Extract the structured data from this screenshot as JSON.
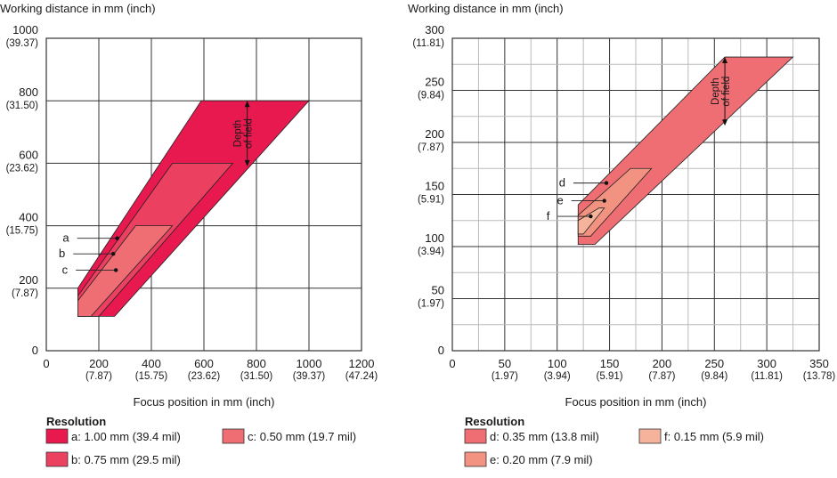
{
  "chart_data": [
    {
      "type": "area",
      "ylabel": "Working distance in mm (inch)",
      "xlabel": "Focus position in mm (inch)",
      "xlim": [
        0,
        1200
      ],
      "ylim": [
        0,
        1000
      ],
      "x_ticks": [
        {
          "value": 0,
          "label": "0",
          "sub": ""
        },
        {
          "value": 200,
          "label": "200",
          "sub": "(7.87)"
        },
        {
          "value": 400,
          "label": "400",
          "sub": "(15.75)"
        },
        {
          "value": 600,
          "label": "600",
          "sub": "(23.62)"
        },
        {
          "value": 800,
          "label": "800",
          "sub": "(31.50)"
        },
        {
          "value": 1000,
          "label": "1000",
          "sub": "(39.37)"
        },
        {
          "value": 1200,
          "label": "1200",
          "sub": "(47.24)"
        }
      ],
      "y_ticks": [
        {
          "value": 0,
          "label": "0",
          "sub": ""
        },
        {
          "value": 200,
          "label": "200",
          "sub": "(7.87)"
        },
        {
          "value": 400,
          "label": "400",
          "sub": "(15.75)"
        },
        {
          "value": 600,
          "label": "600",
          "sub": "(23.62)"
        },
        {
          "value": 800,
          "label": "800",
          "sub": "(31.50)"
        },
        {
          "value": 1000,
          "label": "1000",
          "sub": "(39.37)"
        }
      ],
      "series": [
        {
          "key": "a",
          "name": "a: 1.00 mm (39.4 mil)",
          "color": "#e8194f",
          "outline": [
            [
              120,
              110
            ],
            [
              120,
              200
            ],
            [
              590,
              800
            ],
            [
              1000,
              800
            ],
            [
              260,
              110
            ]
          ]
        },
        {
          "key": "b",
          "name": "b: 0.75 mm (29.5 mil)",
          "color": "#eb4060",
          "outline": [
            [
              120,
              110
            ],
            [
              120,
              175
            ],
            [
              480,
              600
            ],
            [
              710,
              600
            ],
            [
              200,
              110
            ]
          ]
        },
        {
          "key": "c",
          "name": "c: 0.50 mm (19.7 mil)",
          "color": "#ee6e73",
          "outline": [
            [
              120,
              110
            ],
            [
              120,
              160
            ],
            [
              340,
              400
            ],
            [
              480,
              400
            ],
            [
              170,
              110
            ]
          ]
        }
      ],
      "point_labels": [
        {
          "key": "a",
          "text": "a",
          "x": 270,
          "y": 360
        },
        {
          "key": "b",
          "text": "b",
          "x": 255,
          "y": 310
        },
        {
          "key": "c",
          "text": "c",
          "x": 265,
          "y": 258
        }
      ],
      "depth_of_field": {
        "text_line1": "Depth",
        "text_line2": "of field",
        "x": 765,
        "y_top": 800,
        "y_bottom": 590
      },
      "legend_title": "Resolution",
      "legend": [
        {
          "key": "a",
          "label": "a: 1.00 mm (39.4 mil)",
          "color": "#e8194f"
        },
        {
          "key": "c",
          "label": "c: 0.50 mm (19.7 mil)",
          "color": "#ee6e73"
        },
        {
          "key": "b",
          "label": "b: 0.75 mm (29.5 mil)",
          "color": "#eb4060"
        }
      ]
    },
    {
      "type": "area",
      "ylabel": "Working distance in mm (inch)",
      "xlabel": "Focus position in mm (inch)",
      "xlim": [
        0,
        350
      ],
      "ylim": [
        0,
        300
      ],
      "x_ticks": [
        {
          "value": 0,
          "label": "0",
          "sub": ""
        },
        {
          "value": 50,
          "label": "50",
          "sub": "(1.97)"
        },
        {
          "value": 100,
          "label": "100",
          "sub": "(3.94)"
        },
        {
          "value": 150,
          "label": "150",
          "sub": "(5.91)"
        },
        {
          "value": 200,
          "label": "200",
          "sub": "(7.87)"
        },
        {
          "value": 250,
          "label": "250",
          "sub": "(9.84)"
        },
        {
          "value": 300,
          "label": "300",
          "sub": "(11.81)"
        },
        {
          "value": 350,
          "label": "350",
          "sub": "(13.78)"
        }
      ],
      "y_ticks": [
        {
          "value": 0,
          "label": "0",
          "sub": ""
        },
        {
          "value": 50,
          "label": "50",
          "sub": "(1.97)"
        },
        {
          "value": 100,
          "label": "100",
          "sub": "(3.94)"
        },
        {
          "value": 150,
          "label": "150",
          "sub": "(5.91)"
        },
        {
          "value": 200,
          "label": "200",
          "sub": "(7.87)"
        },
        {
          "value": 250,
          "label": "250",
          "sub": "(9.84)"
        },
        {
          "value": 300,
          "label": "300",
          "sub": "(11.81)"
        }
      ],
      "series": [
        {
          "key": "d",
          "name": "d: 0.35 mm (13.8 mil)",
          "color": "#ee6e73",
          "outline": [
            [
              120,
              102
            ],
            [
              120,
              140
            ],
            [
              260,
              282
            ],
            [
              325,
              282
            ],
            [
              136,
              102
            ]
          ]
        },
        {
          "key": "e",
          "name": "e: 0.20 mm (7.9 mil)",
          "color": "#f29280",
          "outline": [
            [
              120,
              110
            ],
            [
              120,
              130
            ],
            [
              170,
              175
            ],
            [
              190,
              175
            ],
            [
              132,
              110
            ]
          ]
        },
        {
          "key": "f",
          "name": "f: 0.15 mm (5.9 mil)",
          "color": "#f6b39c",
          "outline": [
            [
              120,
              112
            ],
            [
              120,
              125
            ],
            [
              140,
              137
            ],
            [
              145,
              137
            ],
            [
              125,
              112
            ]
          ]
        }
      ],
      "point_labels": [
        {
          "key": "d",
          "text": "d",
          "x": 147,
          "y": 161
        },
        {
          "key": "e",
          "text": "e",
          "x": 145,
          "y": 144
        },
        {
          "key": "f",
          "text": "f",
          "x": 132,
          "y": 129
        }
      ],
      "depth_of_field": {
        "text_line1": "Depth",
        "text_line2": "of field",
        "x": 260,
        "y_top": 282,
        "y_bottom": 216
      },
      "legend_title": "Resolution",
      "legend": [
        {
          "key": "d",
          "label": "d: 0.35 mm (13.8 mil)",
          "color": "#ee6e73"
        },
        {
          "key": "f",
          "label": "f: 0.15 mm (5.9 mil)",
          "color": "#f6b39c"
        },
        {
          "key": "e",
          "label": "e: 0.20 mm (7.9 mil)",
          "color": "#f29280"
        }
      ]
    }
  ]
}
